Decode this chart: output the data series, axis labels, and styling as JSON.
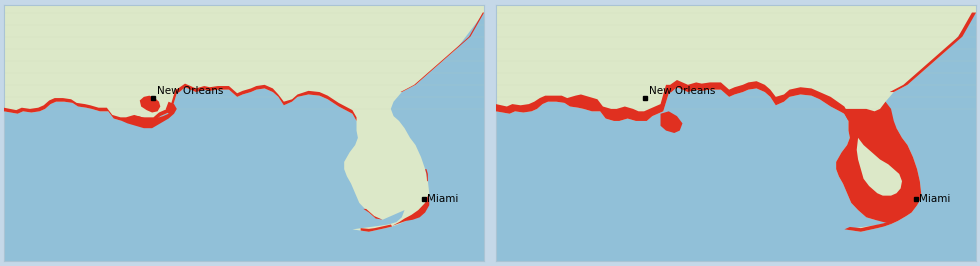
{
  "outer_bg": "#c5d8e8",
  "ocean_color": "#91c0d8",
  "land_color": "#dce8c8",
  "land_texture_color": "#c8d8b0",
  "inundation_color": "#e03020",
  "border_color": "#aac4d4",
  "label_new_orleans": "New Orleans",
  "label_miami": "Miami",
  "label_fontsize": 7.5,
  "xlim": [
    -95.5,
    -78.0
  ],
  "ylim": [
    23.2,
    33.8
  ],
  "new_orleans_lon": -90.07,
  "new_orleans_lat": 29.95,
  "miami_lon": -80.2,
  "miami_lat": 25.77
}
